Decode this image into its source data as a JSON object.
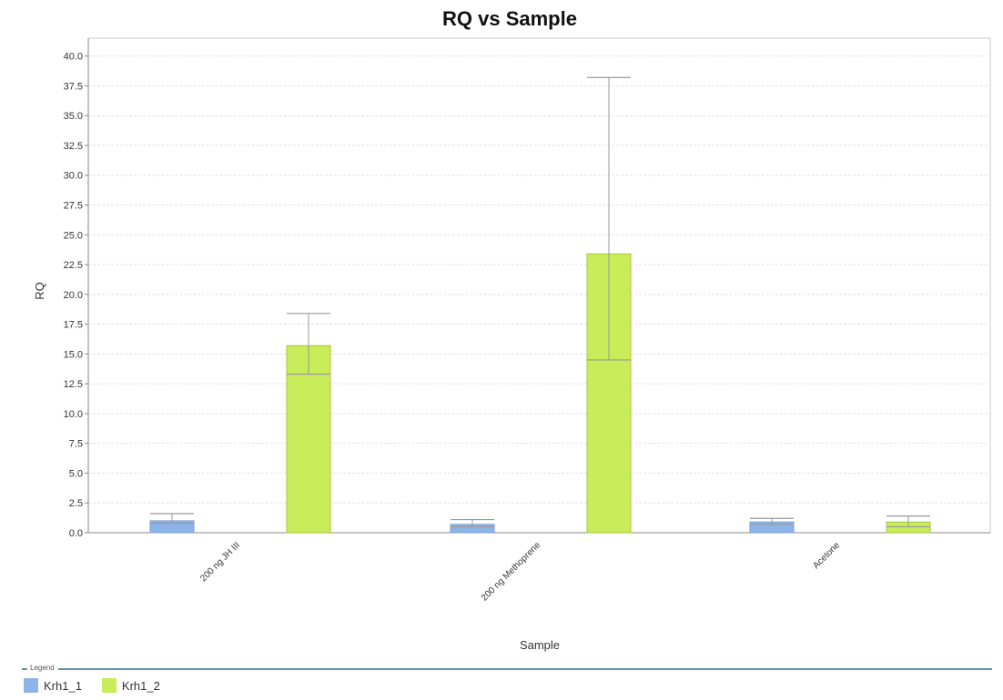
{
  "chart_data": {
    "type": "bar",
    "title": "RQ vs Sample",
    "xlabel": "Sample",
    "ylabel": "RQ",
    "ylim": [
      0,
      41.5
    ],
    "yticks": [
      "0.0",
      "2.5",
      "5.0",
      "7.5",
      "10.0",
      "12.5",
      "15.0",
      "17.5",
      "20.0",
      "22.5",
      "25.0",
      "27.5",
      "30.0",
      "32.5",
      "35.0",
      "37.5",
      "40.0"
    ],
    "grid": true,
    "legend_position": "bottom",
    "legend_caption": "Legend",
    "categories": [
      "200 ng JH III",
      "200 ng Methoprene",
      "Acetone"
    ],
    "series": [
      {
        "name": "Krh1_1",
        "color": "#8db4e8",
        "values": [
          1.0,
          0.7,
          0.9
        ],
        "error_low": [
          0.8,
          0.5,
          0.7
        ],
        "error_high": [
          1.6,
          1.1,
          1.2
        ]
      },
      {
        "name": "Krh1_2",
        "color": "#c8ec5a",
        "values": [
          15.7,
          23.4,
          0.9
        ],
        "error_low": [
          13.3,
          14.5,
          0.5
        ],
        "error_high": [
          18.4,
          38.2,
          1.4
        ]
      }
    ]
  }
}
